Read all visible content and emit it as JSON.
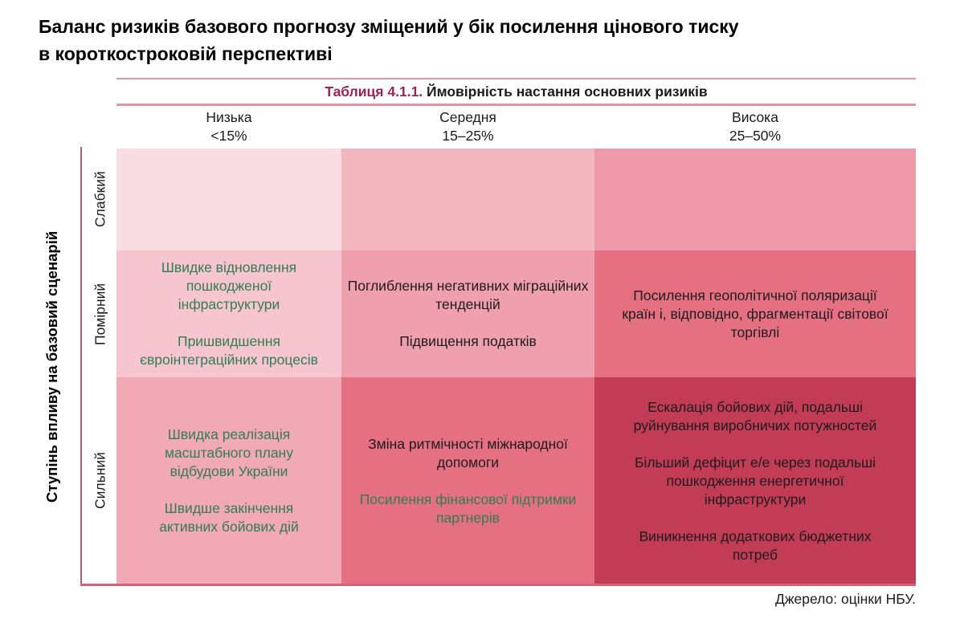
{
  "page_title": {
    "line1": "Баланс ризиків базового прогнозу зміщений у бік посилення цінового тиску",
    "line2": "в короткостроковій перспективі"
  },
  "chart_data": {
    "type": "heatmap",
    "table_number": "Таблиця 4.1.1.",
    "table_title": "Ймовірність настання основних ризиків",
    "x_axis": {
      "name": "probability-of-risk",
      "columns": [
        {
          "label": "Низька",
          "range": "<15%"
        },
        {
          "label": "Середня",
          "range": "15–25%"
        },
        {
          "label": "Висока",
          "range": "25–50%"
        }
      ]
    },
    "y_axis": {
      "label": "Ступінь впливу на базовий сценарій",
      "rows": [
        {
          "label": "Слабкий"
        },
        {
          "label": "Помірний"
        },
        {
          "label": "Сильний"
        }
      ]
    },
    "cells": {
      "weak_low": {
        "row": "Слабкий",
        "col": "Низька",
        "color": "#fadde3",
        "items": []
      },
      "weak_medium": {
        "row": "Слабкий",
        "col": "Середня",
        "color": "#f2b6c1",
        "items": []
      },
      "weak_high": {
        "row": "Слабкий",
        "col": "Висока",
        "color": "#ee9aaa",
        "items": []
      },
      "moderate_low": {
        "row": "Помірний",
        "col": "Низька",
        "color": "#f7c5cf",
        "item_colors": [
          "green",
          "green"
        ],
        "items": [
          "Швидке відновлення пошкодженої інфраструктури",
          "Пришвидшення євроінтеграційних процесів"
        ]
      },
      "moderate_medium": {
        "row": "Помірний",
        "col": "Середня",
        "color": "#f09fae",
        "item_colors": [
          "black",
          "black"
        ],
        "items": [
          "Поглиблення негативних міграційних тенденцій",
          "Підвищення податків"
        ]
      },
      "moderate_high": {
        "row": "Помірний",
        "col": "Висока",
        "color": "#e57082",
        "item_colors": [
          "black"
        ],
        "items": [
          "Посилення геополітичної поляризації країн і, відповідно, фрагментації світової торгівлі"
        ]
      },
      "strong_low": {
        "row": "Сильний",
        "col": "Низька",
        "color": "#f1a9b6",
        "item_colors": [
          "green",
          "green"
        ],
        "items": [
          "Швидка реалізація масштабного плану відбудови України",
          "Швидше закінчення активних бойових дій"
        ]
      },
      "strong_medium": {
        "row": "Сильний",
        "col": "Середня",
        "color": "#e57082",
        "item_colors": [
          "black",
          "green"
        ],
        "items": [
          "Зміна ритмічності міжнародної допомоги",
          "Посилення фінансової підтримки партнерів"
        ]
      },
      "strong_high": {
        "row": "Сильний",
        "col": "Висока",
        "color": "#c23c55",
        "item_colors": [
          "black",
          "black",
          "black"
        ],
        "items": [
          "Ескалація бойових дій, подальші руйнування виробничих потужностей",
          "Більший дефіцит е/е через подальші пошкодження енергетичної інфраструктури",
          "Виникнення додаткових бюджетних потреб"
        ]
      }
    }
  },
  "source_note": "Джерело: оцінки НБУ.",
  "colors": {
    "positive_text_green": "#2f7e52",
    "caption_number_maroon": "#9e2155",
    "header_rule_pink": "#e095a8",
    "axis_line_crimson": "#bf5670",
    "bottom_rule_pink": "#d5607a"
  }
}
